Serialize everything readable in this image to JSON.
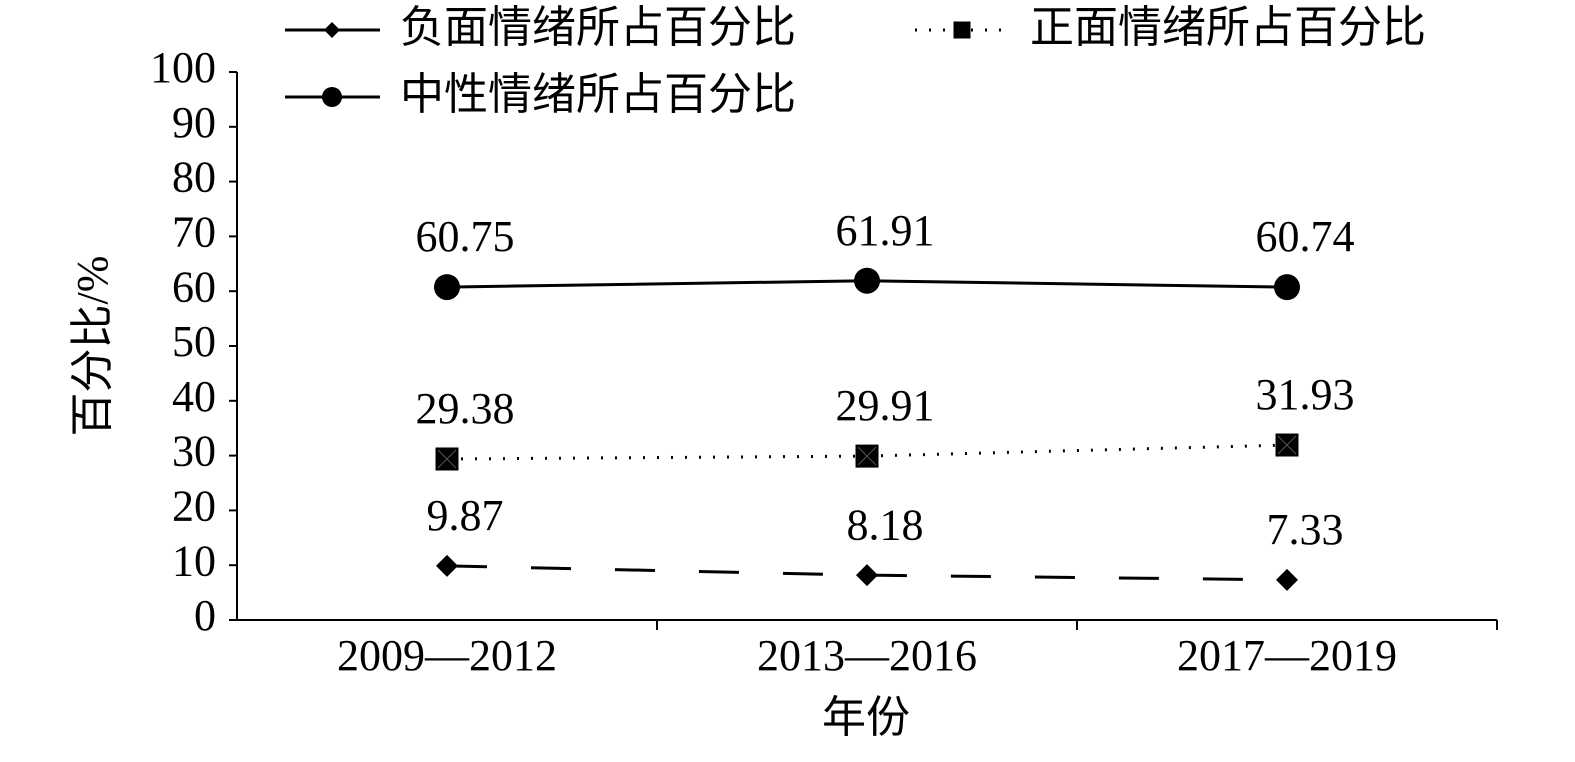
{
  "chart_data": {
    "type": "line",
    "x_label": "年份",
    "y_label": "百分比/%",
    "categories": [
      "2009—2012",
      "2013—2016",
      "2017—2019"
    ],
    "series": [
      {
        "name": "负面情绪所占百分比",
        "color": "#000000",
        "line_style": "dashed",
        "marker": "diamond",
        "values": [
          9.87,
          8.18,
          7.33
        ]
      },
      {
        "name": "正面情绪所占百分比",
        "color": "#000000",
        "line_style": "dotted",
        "marker": "square",
        "values": [
          29.38,
          29.91,
          31.93
        ]
      },
      {
        "name": "中性情绪所占百分比",
        "color": "#000000",
        "line_style": "solid",
        "marker": "circle",
        "values": [
          60.75,
          61.91,
          60.74
        ]
      }
    ],
    "ylim": [
      0,
      100
    ],
    "yticks": [
      0,
      10,
      20,
      30,
      40,
      50,
      60,
      70,
      80,
      90,
      100
    ],
    "grid": false,
    "data_labels": true,
    "legend": "top"
  }
}
